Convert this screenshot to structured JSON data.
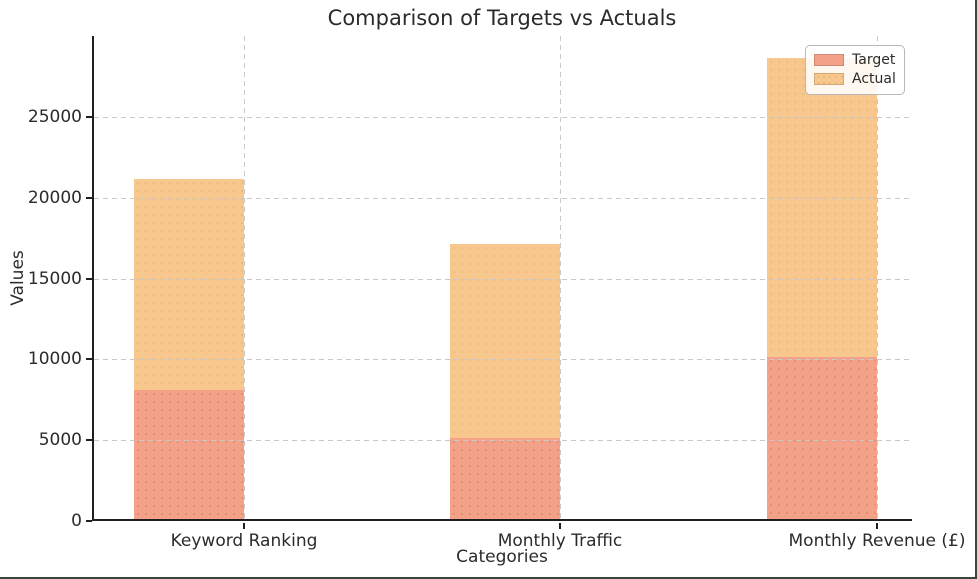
{
  "figure": {
    "title": "Comparison of Targets vs Actuals",
    "xlabel": "Categories",
    "ylabel": "Values"
  },
  "legend": {
    "items": [
      {
        "label": "Target",
        "color": "#f3a188"
      },
      {
        "label": "Actual",
        "color": "#f7c78d"
      }
    ],
    "position": "upper right"
  },
  "chart_data": {
    "type": "bar",
    "title": "Comparison of Targets vs Actuals",
    "xlabel": "Categories",
    "ylabel": "Values",
    "categories": [
      "Keyword Ranking",
      "Monthly Traffic",
      "Monthly Revenue (£)"
    ],
    "series": [
      {
        "name": "Target",
        "values": [
          8000,
          5000,
          10000
        ],
        "color": "#f3a188"
      },
      {
        "name": "Actual",
        "values": [
          21000,
          17000,
          28500
        ],
        "color": "#f7c78d"
      }
    ],
    "bar_style": "overlaid",
    "ylim": [
      0,
      30000
    ],
    "yticks": [
      0,
      5000,
      10000,
      15000,
      20000,
      25000
    ],
    "grid": {
      "horizontal": true,
      "vertical": true,
      "style": "dashed",
      "color": "#c9c9c9"
    },
    "legend_position": "upper right"
  }
}
